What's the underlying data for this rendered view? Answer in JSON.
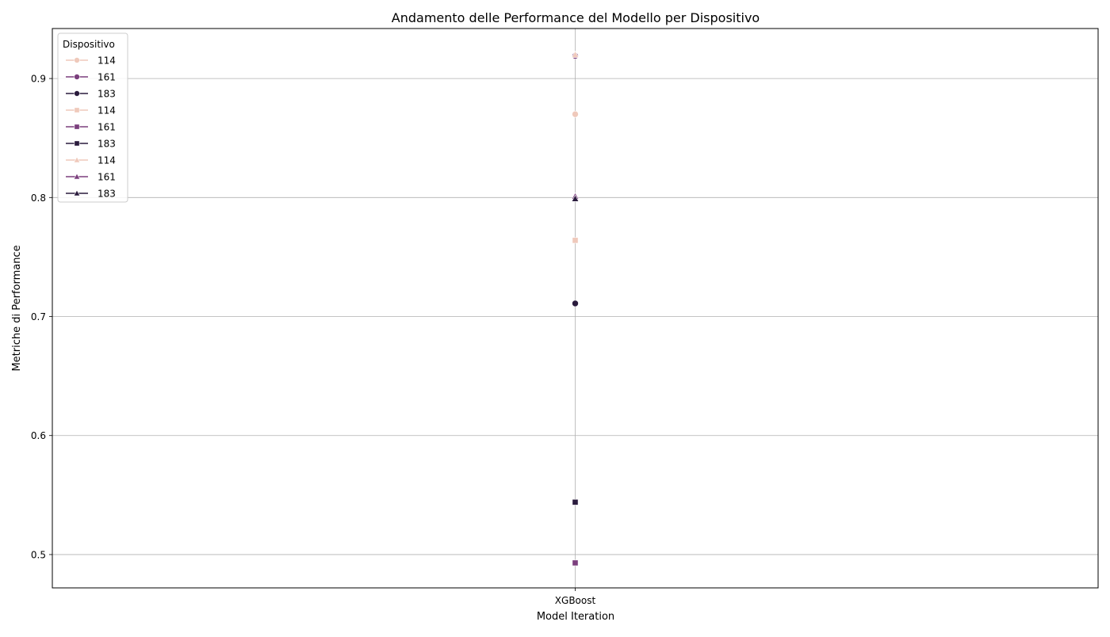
{
  "chart_data": {
    "type": "line",
    "title": "Andamento delle Performance del Modello per Dispositivo",
    "xlabel": "Model Iteration",
    "ylabel": "Metriche di Performance",
    "categories": [
      "XGBoost"
    ],
    "ylim": [
      0.472,
      0.942
    ],
    "yticks": [
      0.5,
      0.6,
      0.7,
      0.8,
      0.9
    ],
    "ytick_labels": [
      "0.5",
      "0.6",
      "0.7",
      "0.8",
      "0.9"
    ],
    "grid": true,
    "legend": {
      "title": "Dispositivo",
      "placement": "top-left"
    },
    "series": [
      {
        "name": "114",
        "marker": "circle",
        "color": "#efc9bb",
        "values": [
          0.87
        ]
      },
      {
        "name": "161",
        "marker": "circle",
        "color": "#7b3f7d",
        "values": [
          0.919
        ]
      },
      {
        "name": "183",
        "marker": "circle",
        "color": "#2a1b3d",
        "values": [
          0.711
        ]
      },
      {
        "name": "114",
        "marker": "square",
        "color": "#efc9bb",
        "values": [
          0.764
        ]
      },
      {
        "name": "161",
        "marker": "square",
        "color": "#7b3f7d",
        "values": [
          0.493
        ]
      },
      {
        "name": "183",
        "marker": "square",
        "color": "#2a1b3d",
        "values": [
          0.544
        ]
      },
      {
        "name": "114",
        "marker": "triangle",
        "color": "#efc9bb",
        "values": [
          0.92
        ]
      },
      {
        "name": "161",
        "marker": "triangle",
        "color": "#7b3f7d",
        "values": [
          0.801
        ]
      },
      {
        "name": "183",
        "marker": "triangle",
        "color": "#2a1b3d",
        "values": [
          0.799
        ]
      }
    ]
  }
}
